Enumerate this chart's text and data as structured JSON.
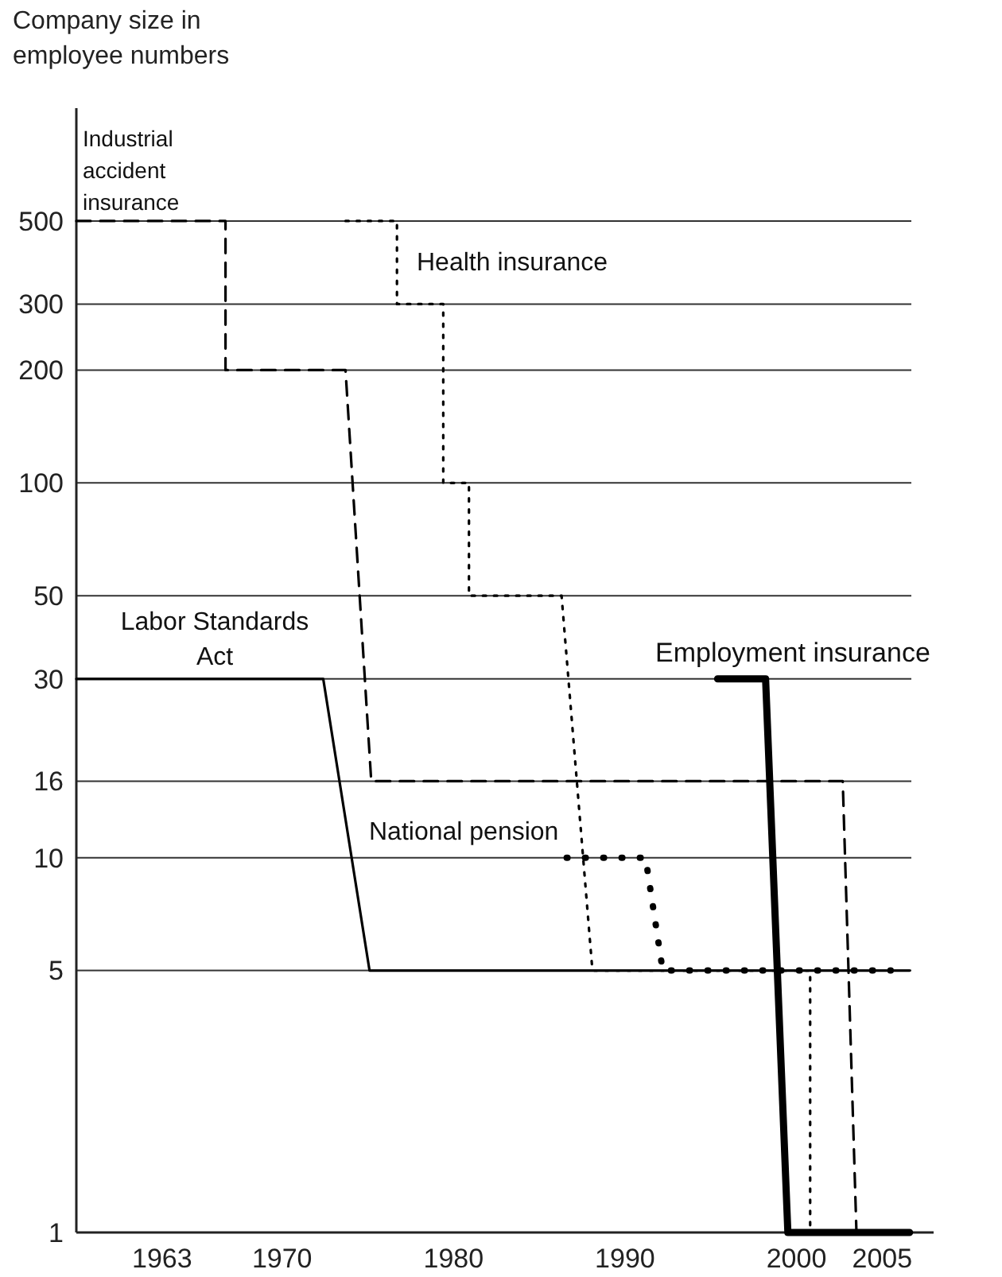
{
  "chart_data": {
    "type": "line",
    "ylabel": "Company size in employee numbers",
    "xlim": [
      1958,
      2008
    ],
    "xticks": [
      1963,
      1970,
      1980,
      1990,
      2000,
      2005
    ],
    "ylim": [
      1,
      1000
    ],
    "log": "y",
    "yticks": [
      1,
      5,
      10,
      16,
      30,
      50,
      100,
      200,
      300,
      500
    ],
    "grid": "y",
    "marker": "none",
    "series": [
      {
        "name": "Industrial accident insurance",
        "color": "#000000",
        "line_style": "dashed",
        "x": [
          1958,
          1966.7,
          1966.7,
          1973.7,
          1975.2,
          2002.7,
          2003.5
        ],
        "values": [
          500,
          500,
          200,
          200,
          16,
          16,
          1
        ]
      },
      {
        "name": "Health insurance",
        "color": "#000000",
        "line_style": "dotted",
        "x": [
          1973.7,
          1976.7,
          1976.7,
          1979.4,
          1979.4,
          1980.9,
          1980.9,
          1986.3,
          1988.1,
          2000.8,
          2000.8
        ],
        "values": [
          500,
          500,
          300,
          300,
          100,
          100,
          50,
          50,
          5,
          5,
          1
        ]
      },
      {
        "name": "Labor Standards Act",
        "color": "#000000",
        "line_style": "solid",
        "x": [
          1958,
          1972.4,
          1975.1,
          2006.6
        ],
        "values": [
          30,
          30,
          5,
          5
        ]
      },
      {
        "name": "National pension",
        "color": "#000000",
        "line_style": "dotted",
        "x": [
          1986.6,
          1991.2,
          1992.2,
          2005.5
        ],
        "values": [
          10,
          10,
          5,
          5
        ]
      },
      {
        "name": "Employment insurance",
        "color": "#000000",
        "line_style": "solid",
        "x": [
          1995.4,
          1998.2,
          1999.5,
          2006.6
        ],
        "values": [
          30,
          30,
          1,
          1
        ]
      }
    ]
  }
}
